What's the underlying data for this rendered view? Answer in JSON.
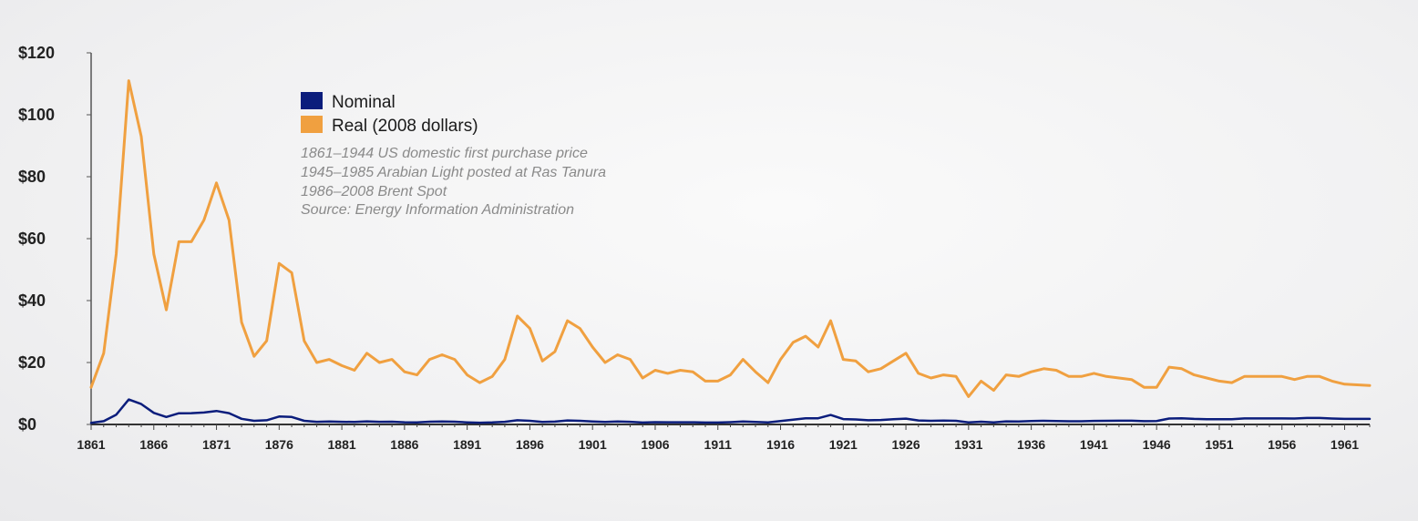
{
  "chart_data": {
    "type": "line",
    "title": "",
    "xlabel": "",
    "ylabel": "",
    "xlim": [
      1861,
      1963
    ],
    "ylim": [
      0,
      120
    ],
    "grid": false,
    "legend_position": "top-left",
    "y_ticks": [
      "$0",
      "$20",
      "$40",
      "$60",
      "$80",
      "$100",
      "$120"
    ],
    "x_ticks": [
      "1861",
      "1866",
      "1871",
      "1876",
      "1881",
      "1886",
      "1891",
      "1896",
      "1901",
      "1906",
      "1911",
      "1916",
      "1921",
      "1926",
      "1931",
      "1936",
      "1941",
      "1946",
      "1951",
      "1956",
      "1961"
    ],
    "x": [
      1861,
      1862,
      1863,
      1864,
      1865,
      1866,
      1867,
      1868,
      1869,
      1870,
      1871,
      1872,
      1873,
      1874,
      1875,
      1876,
      1877,
      1878,
      1879,
      1880,
      1881,
      1882,
      1883,
      1884,
      1885,
      1886,
      1887,
      1888,
      1889,
      1890,
      1891,
      1892,
      1893,
      1894,
      1895,
      1896,
      1897,
      1898,
      1899,
      1900,
      1901,
      1902,
      1903,
      1904,
      1905,
      1906,
      1907,
      1908,
      1909,
      1910,
      1911,
      1912,
      1913,
      1914,
      1915,
      1916,
      1917,
      1918,
      1919,
      1920,
      1921,
      1922,
      1923,
      1924,
      1925,
      1926,
      1927,
      1928,
      1929,
      1930,
      1931,
      1932,
      1933,
      1934,
      1935,
      1936,
      1937,
      1938,
      1939,
      1940,
      1941,
      1942,
      1943,
      1944,
      1945,
      1946,
      1947,
      1948,
      1949,
      1950,
      1951,
      1952,
      1953,
      1954,
      1955,
      1956,
      1957,
      1958,
      1959,
      1960,
      1961,
      1962,
      1963
    ],
    "series": [
      {
        "name": "Nominal",
        "color": "#0b1d7c",
        "values": [
          0.49,
          1.05,
          3.15,
          8.06,
          6.59,
          3.74,
          2.41,
          3.63,
          3.64,
          3.86,
          4.34,
          3.64,
          1.83,
          1.17,
          1.35,
          2.56,
          2.42,
          1.19,
          0.86,
          0.95,
          0.86,
          0.78,
          1.0,
          0.84,
          0.88,
          0.71,
          0.67,
          0.88,
          0.94,
          0.87,
          0.67,
          0.56,
          0.64,
          0.84,
          1.36,
          1.18,
          0.79,
          0.91,
          1.29,
          1.19,
          0.96,
          0.8,
          0.94,
          0.86,
          0.62,
          0.73,
          0.72,
          0.72,
          0.7,
          0.61,
          0.61,
          0.74,
          0.95,
          0.81,
          0.64,
          1.1,
          1.56,
          1.98,
          2.01,
          3.07,
          1.73,
          1.61,
          1.34,
          1.43,
          1.68,
          1.88,
          1.3,
          1.17,
          1.27,
          1.19,
          0.65,
          0.87,
          0.67,
          1.0,
          0.97,
          1.09,
          1.18,
          1.13,
          1.02,
          1.02,
          1.14,
          1.19,
          1.2,
          1.21,
          1.05,
          1.12,
          1.9,
          1.99,
          1.78,
          1.71,
          1.71,
          1.71,
          1.93,
          1.93,
          1.93,
          1.93,
          1.9,
          2.08,
          2.08,
          1.9,
          1.8,
          1.8,
          1.8
        ]
      },
      {
        "name": "Real (2008 dollars)",
        "color": "#f0a040",
        "values": [
          12,
          23,
          55,
          111,
          93,
          55,
          37,
          59,
          59,
          66,
          78,
          66,
          33,
          22,
          27,
          52,
          49,
          27,
          20,
          21,
          19,
          17.5,
          23,
          20,
          21,
          17,
          16,
          21,
          22.5,
          21,
          16,
          13.5,
          15.5,
          21,
          35,
          31,
          20.5,
          23.5,
          33.5,
          31,
          25,
          20,
          22.5,
          21,
          15,
          17.5,
          16.5,
          17.5,
          17,
          14,
          14,
          16,
          21,
          17,
          13.5,
          21,
          26.5,
          28.5,
          25,
          33.5,
          21,
          20.5,
          17,
          18,
          20.5,
          23,
          16.5,
          15,
          16,
          15.5,
          9,
          14,
          11,
          16,
          15.5,
          17,
          18,
          17.5,
          15.5,
          15.5,
          16.5,
          15.5,
          15,
          14.5,
          12,
          12,
          18.5,
          18,
          16,
          15,
          14,
          13.5,
          15.5,
          15.5,
          15.5,
          15.5,
          14.5,
          15.5,
          15.5,
          14,
          13,
          12.8,
          12.6
        ]
      }
    ],
    "legend": [
      "Nominal",
      "Real (2008 dollars)"
    ],
    "annotations": [
      "1861–1944 US domestic first purchase price",
      "1945–1985 Arabian Light posted at Ras Tanura",
      "1986–2008 Brent Spot",
      "Source: Energy Information Administration"
    ]
  }
}
